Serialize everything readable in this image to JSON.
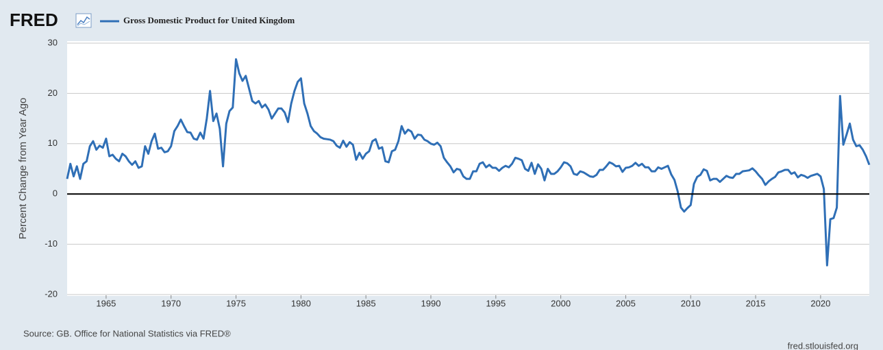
{
  "chart_data": {
    "type": "line",
    "logo": "FRED",
    "ylabel": "Percent Change from Year Ago",
    "source": "Source: GB. Office for National Statistics via FRED®",
    "credit": "fred.stlouisfed.org",
    "xlim": [
      1962,
      2023.75
    ],
    "xticks": [
      1965,
      1970,
      1975,
      1980,
      1985,
      1990,
      1995,
      2000,
      2005,
      2010,
      2015,
      2020
    ],
    "ylim": [
      -20,
      30
    ],
    "yticks": [
      -20,
      -10,
      0,
      10,
      20,
      30
    ],
    "grid": true,
    "zero_line": true,
    "x": [
      1962,
      1962.25,
      1962.5,
      1962.75,
      1963,
      1963.25,
      1963.5,
      1963.75,
      1964,
      1964.25,
      1964.5,
      1964.75,
      1965,
      1965.25,
      1965.5,
      1965.75,
      1966,
      1966.25,
      1966.5,
      1966.75,
      1967,
      1967.25,
      1967.5,
      1967.75,
      1968,
      1968.25,
      1968.5,
      1968.75,
      1969,
      1969.25,
      1969.5,
      1969.75,
      1970,
      1970.25,
      1970.5,
      1970.75,
      1971,
      1971.25,
      1971.5,
      1971.75,
      1972,
      1972.25,
      1972.5,
      1972.75,
      1973,
      1973.25,
      1973.5,
      1973.75,
      1974,
      1974.25,
      1974.5,
      1974.75,
      1975,
      1975.25,
      1975.5,
      1975.75,
      1976,
      1976.25,
      1976.5,
      1976.75,
      1977,
      1977.25,
      1977.5,
      1977.75,
      1978,
      1978.25,
      1978.5,
      1978.75,
      1979,
      1979.25,
      1979.5,
      1979.75,
      1980,
      1980.25,
      1980.5,
      1980.75,
      1981,
      1981.25,
      1981.5,
      1981.75,
      1982,
      1982.25,
      1982.5,
      1982.75,
      1983,
      1983.25,
      1983.5,
      1983.75,
      1984,
      1984.25,
      1984.5,
      1984.75,
      1985,
      1985.25,
      1985.5,
      1985.75,
      1986,
      1986.25,
      1986.5,
      1986.75,
      1987,
      1987.25,
      1987.5,
      1987.75,
      1988,
      1988.25,
      1988.5,
      1988.75,
      1989,
      1989.25,
      1989.5,
      1989.75,
      1990,
      1990.25,
      1990.5,
      1990.75,
      1991,
      1991.25,
      1991.5,
      1991.75,
      1992,
      1992.25,
      1992.5,
      1992.75,
      1993,
      1993.25,
      1993.5,
      1993.75,
      1994,
      1994.25,
      1994.5,
      1994.75,
      1995,
      1995.25,
      1995.5,
      1995.75,
      1996,
      1996.25,
      1996.5,
      1996.75,
      1997,
      1997.25,
      1997.5,
      1997.75,
      1998,
      1998.25,
      1998.5,
      1998.75,
      1999,
      1999.25,
      1999.5,
      1999.75,
      2000,
      2000.25,
      2000.5,
      2000.75,
      2001,
      2001.25,
      2001.5,
      2001.75,
      2002,
      2002.25,
      2002.5,
      2002.75,
      2003,
      2003.25,
      2003.5,
      2003.75,
      2004,
      2004.25,
      2004.5,
      2004.75,
      2005,
      2005.25,
      2005.5,
      2005.75,
      2006,
      2006.25,
      2006.5,
      2006.75,
      2007,
      2007.25,
      2007.5,
      2007.75,
      2008,
      2008.25,
      2008.5,
      2008.75,
      2009,
      2009.25,
      2009.5,
      2009.75,
      2010,
      2010.25,
      2010.5,
      2010.75,
      2011,
      2011.25,
      2011.5,
      2011.75,
      2012,
      2012.25,
      2012.5,
      2012.75,
      2013,
      2013.25,
      2013.5,
      2013.75,
      2014,
      2014.25,
      2014.5,
      2014.75,
      2015,
      2015.25,
      2015.5,
      2015.75,
      2016,
      2016.25,
      2016.5,
      2016.75,
      2017,
      2017.25,
      2017.5,
      2017.75,
      2018,
      2018.25,
      2018.5,
      2018.75,
      2019,
      2019.25,
      2019.5,
      2019.75,
      2020,
      2020.25,
      2020.5,
      2020.75,
      2021,
      2021.25,
      2021.5,
      2021.75,
      2022,
      2022.25,
      2022.5,
      2022.75,
      2023,
      2023.25,
      2023.5,
      2023.75
    ],
    "series": [
      {
        "name": "Gross Domestic Product for United Kingdom",
        "color": "#2f6fb6",
        "values": [
          3,
          6,
          3.5,
          5.5,
          3,
          6,
          6.5,
          9.5,
          10.5,
          8.8,
          9.6,
          9.2,
          11,
          7.5,
          7.8,
          7,
          6.5,
          8,
          7.5,
          6.5,
          5.8,
          6.5,
          5.2,
          5.5,
          9.5,
          8,
          10.5,
          12,
          9,
          9.2,
          8.3,
          8.5,
          9.5,
          12.5,
          13.5,
          14.8,
          13.5,
          12.3,
          12.2,
          11,
          10.8,
          12.2,
          11,
          15,
          20.5,
          14.5,
          16,
          13,
          5.5,
          14,
          16.5,
          17.2,
          26.8,
          24,
          22.5,
          23.5,
          21,
          18.5,
          18,
          18.5,
          17.2,
          17.8,
          16.8,
          15,
          16,
          17,
          17,
          16.2,
          14.3,
          18,
          20.5,
          22.3,
          23,
          18,
          16,
          13.5,
          12.5,
          12,
          11.3,
          11,
          10.9,
          10.8,
          10.5,
          9.6,
          9.2,
          10.6,
          9.4,
          10.3,
          9.8,
          6.8,
          8.2,
          7,
          8,
          8.5,
          10.5,
          10.9,
          9,
          9.3,
          6.5,
          6.3,
          8.5,
          8.8,
          10.5,
          13.5,
          12,
          12.8,
          12.4,
          11,
          11.8,
          11.7,
          10.8,
          10.5,
          10,
          9.8,
          10.2,
          9.5,
          7.2,
          6.3,
          5.5,
          4.3,
          5,
          4.8,
          3.5,
          3,
          3,
          4.5,
          4.5,
          6,
          6.3,
          5.3,
          5.8,
          5.2,
          5.2,
          4.6,
          5.2,
          5.6,
          5.3,
          6,
          7.2,
          7,
          6.7,
          5,
          4.6,
          6.2,
          4,
          5.9,
          5,
          2.7,
          5,
          4,
          4,
          4.5,
          5.3,
          6.3,
          6.1,
          5.5,
          4,
          3.8,
          4.5,
          4.3,
          3.9,
          3.5,
          3.4,
          3.8,
          4.8,
          4.8,
          5.5,
          6.3,
          6,
          5.5,
          5.6,
          4.4,
          5.2,
          5.3,
          5.6,
          6.2,
          5.6,
          6,
          5.3,
          5.3,
          4.5,
          4.5,
          5.3,
          5,
          5.3,
          5.6,
          3.9,
          2.8,
          0.5,
          -2.7,
          -3.5,
          -2.8,
          -2.2,
          2,
          3.4,
          3.8,
          4.9,
          4.6,
          2.7,
          3,
          3,
          2.4,
          3,
          3.6,
          3.3,
          3.2,
          4,
          4,
          4.5,
          4.6,
          4.7,
          5.1,
          4.5,
          3.7,
          3,
          1.8,
          2.5,
          3,
          3.4,
          4.3,
          4.5,
          4.8,
          4.8,
          4,
          4.3,
          3.3,
          3.8,
          3.6,
          3.2,
          3.6,
          3.8,
          4,
          3.5,
          1,
          -14.2,
          -5,
          -4.8,
          -2.7,
          19.5,
          9.8,
          11.8,
          14,
          10.8,
          9.5,
          9.7,
          8.8,
          7.5,
          5.8
        ]
      }
    ]
  }
}
